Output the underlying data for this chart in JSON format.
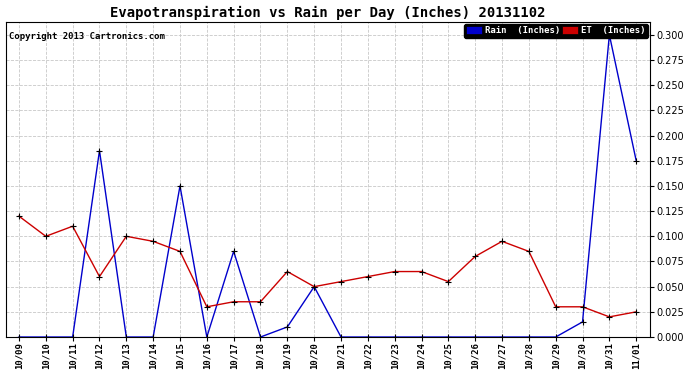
{
  "title": "Evapotranspiration vs Rain per Day (Inches) 20131102",
  "copyright": "Copyright 2013 Cartronics.com",
  "background_color": "#ffffff",
  "grid_color": "#c8c8c8",
  "x_labels": [
    "10/09",
    "10/10",
    "10/11",
    "10/12",
    "10/13",
    "10/14",
    "10/15",
    "10/16",
    "10/17",
    "10/18",
    "10/19",
    "10/20",
    "10/21",
    "10/22",
    "10/23",
    "10/24",
    "10/25",
    "10/26",
    "10/27",
    "10/28",
    "10/29",
    "10/30",
    "10/31",
    "11/01"
  ],
  "rain_values": [
    0.0,
    0.0,
    0.0,
    0.185,
    0.0,
    0.0,
    0.15,
    0.0,
    0.085,
    0.0,
    0.01,
    0.05,
    0.0,
    0.0,
    0.0,
    0.0,
    0.0,
    0.0,
    0.0,
    0.0,
    0.0,
    0.015,
    0.3,
    0.175
  ],
  "et_values": [
    0.12,
    0.1,
    0.11,
    0.06,
    0.1,
    0.095,
    0.085,
    0.03,
    0.035,
    0.035,
    0.065,
    0.05,
    0.055,
    0.06,
    0.065,
    0.065,
    0.055,
    0.08,
    0.095,
    0.085,
    0.03,
    0.03,
    0.02,
    0.025
  ],
  "rain_color": "#0000cc",
  "et_color": "#cc0000",
  "ylim": [
    0.0,
    0.3125
  ],
  "yticks": [
    0.0,
    0.025,
    0.05,
    0.075,
    0.1,
    0.125,
    0.15,
    0.175,
    0.2,
    0.225,
    0.25,
    0.275,
    0.3
  ],
  "legend_rain_bg": "#0000cc",
  "legend_et_bg": "#cc0000",
  "fig_width": 6.9,
  "fig_height": 3.75,
  "dpi": 100
}
